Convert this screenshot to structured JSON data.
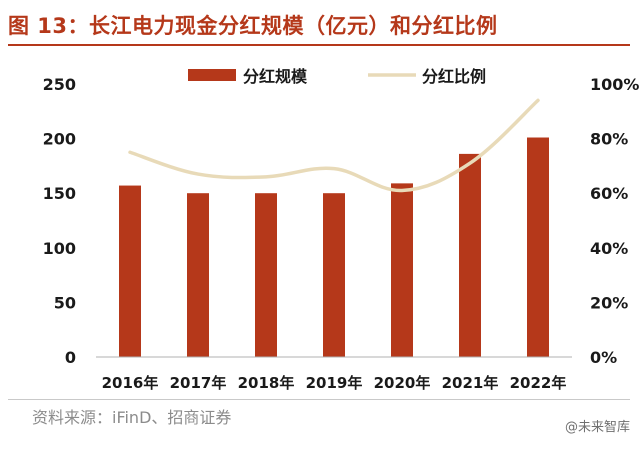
{
  "title": "图 13：长江电力现金分红规模（亿元）和分红比例",
  "source": "资料来源：iFinD、招商证券",
  "watermark": "@未来智库",
  "colors": {
    "bar": "#b5381a",
    "line": "#e8dab8",
    "title": "#b5381a",
    "axis": "#1a1a1a"
  },
  "chart_data": {
    "type": "bar",
    "categories": [
      "2016年",
      "2017年",
      "2018年",
      "2019年",
      "2020年",
      "2021年",
      "2022年"
    ],
    "series": [
      {
        "name": "分红规模",
        "type": "bar",
        "axis": "left",
        "values": [
          157,
          150,
          150,
          150,
          159,
          186,
          201
        ]
      },
      {
        "name": "分红比例",
        "type": "line",
        "axis": "right",
        "values": [
          75,
          67,
          66,
          69,
          61,
          71,
          94
        ]
      }
    ],
    "y_left": {
      "lim": [
        0,
        250
      ],
      "ticks": [
        "0",
        "50",
        "100",
        "150",
        "200",
        "250"
      ]
    },
    "y_right": {
      "lim": [
        0,
        100
      ],
      "ticks": [
        "0%",
        "20%",
        "40%",
        "60%",
        "80%",
        "100%"
      ]
    },
    "legend_position": "top",
    "grid": false
  }
}
